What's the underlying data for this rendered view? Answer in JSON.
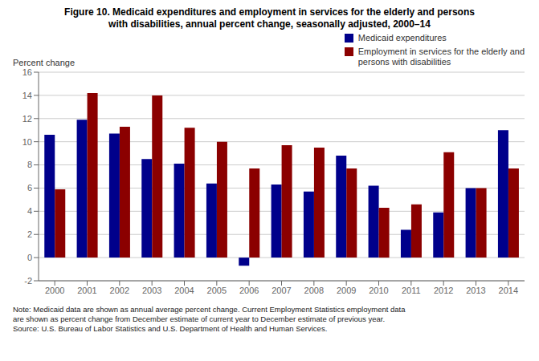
{
  "chart_data": {
    "type": "bar",
    "title": "Figure 10. Medicaid expenditures and employment in services for the elderly and persons\nwith disabilities, annual percent change, seasonally adjusted, 2000–14",
    "y_label": "Percent change",
    "categories": [
      "2000",
      "2001",
      "2002",
      "2003",
      "2004",
      "2005",
      "2006",
      "2007",
      "2008",
      "2009",
      "2010",
      "2011",
      "2012",
      "2013",
      "2014"
    ],
    "series": [
      {
        "name": "Medicaid expenditures",
        "color": "#00008B",
        "values": [
          10.6,
          11.9,
          10.7,
          8.5,
          8.1,
          6.4,
          -0.7,
          6.3,
          5.7,
          8.8,
          6.2,
          2.4,
          3.9,
          6.0,
          11.0
        ]
      },
      {
        "name": "Employment in services for the elderly and\npersons with disabilities",
        "color": "#8B0000",
        "values": [
          5.9,
          14.2,
          11.3,
          14.0,
          11.2,
          10.0,
          7.7,
          9.7,
          9.5,
          7.7,
          4.3,
          4.6,
          9.1,
          6.0,
          7.7
        ]
      }
    ],
    "ylim": [
      -2,
      16
    ],
    "yticks": [
      -2,
      0,
      2,
      4,
      6,
      8,
      10,
      12,
      14,
      16
    ],
    "grid": true,
    "legend": "upper right",
    "annotations": [
      "Note: Medicaid data are shown as annual average percent change. Current Employment Statistics employment data\nare shown as percent change from December estimate of current year to December estimate of previous year.\nSource: U.S. Bureau of Labor Statistics and U.S. Department of Health and Human Services."
    ]
  }
}
